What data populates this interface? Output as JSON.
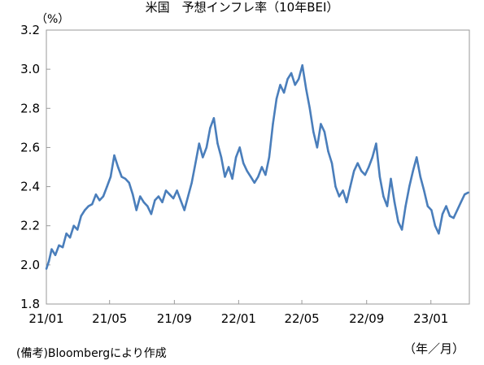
{
  "title": "米国　予想インフレ率（10年BEI）",
  "unit_label": "（%）",
  "source_note": "(備考)Bloombergにより作成",
  "x_unit_label": "（年／月）",
  "colors": {
    "line": "#4a7ebb",
    "frame": "#9a9a9a"
  },
  "chart_data": {
    "type": "line",
    "title": "米国　予想インフレ率（10年BEI）",
    "ylabel": "（%）",
    "xlabel": "（年／月）",
    "ylim": [
      1.8,
      3.2
    ],
    "yticks": [
      "1.8",
      "2.0",
      "2.2",
      "2.4",
      "2.6",
      "2.8",
      "3.0",
      "3.2"
    ],
    "xlim": [
      "2021-01-01",
      "2023-03-15"
    ],
    "xticks": [
      {
        "label": "21/01",
        "date": "2021-01-01"
      },
      {
        "label": "21/05",
        "date": "2021-05-01"
      },
      {
        "label": "21/09",
        "date": "2021-09-01"
      },
      {
        "label": "22/01",
        "date": "2022-01-01"
      },
      {
        "label": "22/05",
        "date": "2022-05-01"
      },
      {
        "label": "22/09",
        "date": "2022-09-01"
      },
      {
        "label": "23/01",
        "date": "2023-01-01"
      }
    ],
    "grid": false,
    "series": [
      {
        "points": [
          [
            "2021-01-01",
            1.98
          ],
          [
            "2021-01-06",
            2.02
          ],
          [
            "2021-01-11",
            2.08
          ],
          [
            "2021-01-18",
            2.05
          ],
          [
            "2021-01-25",
            2.1
          ],
          [
            "2021-02-01",
            2.09
          ],
          [
            "2021-02-08",
            2.16
          ],
          [
            "2021-02-15",
            2.14
          ],
          [
            "2021-02-22",
            2.2
          ],
          [
            "2021-03-01",
            2.18
          ],
          [
            "2021-03-08",
            2.25
          ],
          [
            "2021-03-15",
            2.28
          ],
          [
            "2021-03-22",
            2.3
          ],
          [
            "2021-03-29",
            2.31
          ],
          [
            "2021-04-05",
            2.36
          ],
          [
            "2021-04-12",
            2.33
          ],
          [
            "2021-04-19",
            2.35
          ],
          [
            "2021-04-26",
            2.4
          ],
          [
            "2021-05-03",
            2.45
          ],
          [
            "2021-05-10",
            2.56
          ],
          [
            "2021-05-17",
            2.5
          ],
          [
            "2021-05-24",
            2.45
          ],
          [
            "2021-05-31",
            2.44
          ],
          [
            "2021-06-07",
            2.42
          ],
          [
            "2021-06-14",
            2.36
          ],
          [
            "2021-06-21",
            2.28
          ],
          [
            "2021-06-28",
            2.35
          ],
          [
            "2021-07-05",
            2.32
          ],
          [
            "2021-07-12",
            2.3
          ],
          [
            "2021-07-19",
            2.26
          ],
          [
            "2021-07-26",
            2.33
          ],
          [
            "2021-08-02",
            2.35
          ],
          [
            "2021-08-09",
            2.32
          ],
          [
            "2021-08-16",
            2.38
          ],
          [
            "2021-08-23",
            2.36
          ],
          [
            "2021-08-30",
            2.34
          ],
          [
            "2021-09-06",
            2.38
          ],
          [
            "2021-09-13",
            2.33
          ],
          [
            "2021-09-20",
            2.28
          ],
          [
            "2021-09-27",
            2.35
          ],
          [
            "2021-10-04",
            2.42
          ],
          [
            "2021-10-11",
            2.52
          ],
          [
            "2021-10-18",
            2.62
          ],
          [
            "2021-10-25",
            2.55
          ],
          [
            "2021-11-01",
            2.6
          ],
          [
            "2021-11-08",
            2.7
          ],
          [
            "2021-11-15",
            2.75
          ],
          [
            "2021-11-22",
            2.62
          ],
          [
            "2021-11-29",
            2.55
          ],
          [
            "2021-12-06",
            2.45
          ],
          [
            "2021-12-13",
            2.5
          ],
          [
            "2021-12-20",
            2.44
          ],
          [
            "2021-12-27",
            2.55
          ],
          [
            "2022-01-03",
            2.6
          ],
          [
            "2022-01-10",
            2.52
          ],
          [
            "2022-01-17",
            2.48
          ],
          [
            "2022-01-24",
            2.45
          ],
          [
            "2022-01-31",
            2.42
          ],
          [
            "2022-02-07",
            2.45
          ],
          [
            "2022-02-14",
            2.5
          ],
          [
            "2022-02-21",
            2.46
          ],
          [
            "2022-02-28",
            2.55
          ],
          [
            "2022-03-07",
            2.72
          ],
          [
            "2022-03-14",
            2.85
          ],
          [
            "2022-03-21",
            2.92
          ],
          [
            "2022-03-28",
            2.88
          ],
          [
            "2022-04-04",
            2.95
          ],
          [
            "2022-04-11",
            2.98
          ],
          [
            "2022-04-18",
            2.92
          ],
          [
            "2022-04-25",
            2.95
          ],
          [
            "2022-05-02",
            3.02
          ],
          [
            "2022-05-09",
            2.9
          ],
          [
            "2022-05-16",
            2.8
          ],
          [
            "2022-05-23",
            2.68
          ],
          [
            "2022-05-30",
            2.6
          ],
          [
            "2022-06-06",
            2.72
          ],
          [
            "2022-06-13",
            2.68
          ],
          [
            "2022-06-20",
            2.58
          ],
          [
            "2022-06-27",
            2.52
          ],
          [
            "2022-07-04",
            2.4
          ],
          [
            "2022-07-11",
            2.35
          ],
          [
            "2022-07-18",
            2.38
          ],
          [
            "2022-07-25",
            2.32
          ],
          [
            "2022-08-01",
            2.4
          ],
          [
            "2022-08-08",
            2.48
          ],
          [
            "2022-08-15",
            2.52
          ],
          [
            "2022-08-22",
            2.48
          ],
          [
            "2022-08-29",
            2.46
          ],
          [
            "2022-09-05",
            2.5
          ],
          [
            "2022-09-12",
            2.55
          ],
          [
            "2022-09-19",
            2.62
          ],
          [
            "2022-09-26",
            2.45
          ],
          [
            "2022-10-03",
            2.35
          ],
          [
            "2022-10-10",
            2.3
          ],
          [
            "2022-10-17",
            2.44
          ],
          [
            "2022-10-24",
            2.32
          ],
          [
            "2022-10-31",
            2.22
          ],
          [
            "2022-11-07",
            2.18
          ],
          [
            "2022-11-14",
            2.3
          ],
          [
            "2022-11-21",
            2.4
          ],
          [
            "2022-11-28",
            2.48
          ],
          [
            "2022-12-05",
            2.55
          ],
          [
            "2022-12-12",
            2.45
          ],
          [
            "2022-12-19",
            2.38
          ],
          [
            "2022-12-26",
            2.3
          ],
          [
            "2023-01-02",
            2.28
          ],
          [
            "2023-01-09",
            2.2
          ],
          [
            "2023-01-16",
            2.16
          ],
          [
            "2023-01-23",
            2.26
          ],
          [
            "2023-01-30",
            2.3
          ],
          [
            "2023-02-06",
            2.25
          ],
          [
            "2023-02-13",
            2.24
          ],
          [
            "2023-02-20",
            2.28
          ],
          [
            "2023-02-27",
            2.32
          ],
          [
            "2023-03-06",
            2.36
          ],
          [
            "2023-03-13",
            2.37
          ]
        ]
      }
    ]
  }
}
